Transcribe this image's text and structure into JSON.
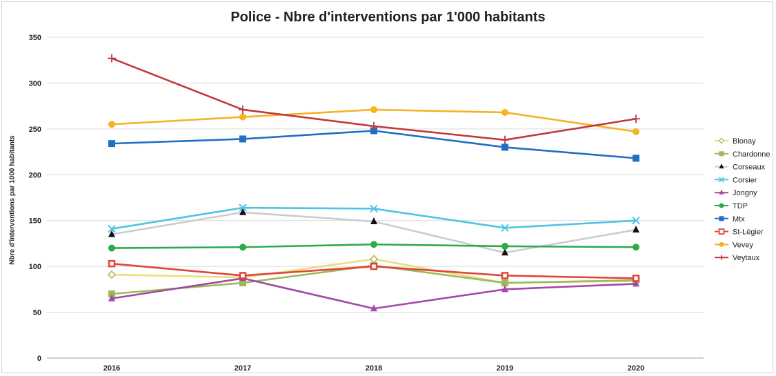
{
  "chart_data": {
    "type": "line",
    "title": "Police - Nbre d'interventions par 1'000 habitants",
    "xlabel": "",
    "ylabel": "Nbre d'interventions par 1000 habitants",
    "x": [
      "2016",
      "2017",
      "2018",
      "2019",
      "2020"
    ],
    "ylim": [
      0,
      350
    ],
    "yticks": [
      0,
      50,
      100,
      150,
      200,
      250,
      300,
      350
    ],
    "grid": true,
    "legend": "right",
    "series": [
      {
        "name": "Blonay",
        "color": "#e8e07a",
        "marker": "diamond-open",
        "values": [
          91,
          88,
          108,
          82,
          84
        ]
      },
      {
        "name": "Chardonne",
        "color": "#9bbb59",
        "marker": "square",
        "values": [
          70,
          82,
          101,
          82,
          85
        ]
      },
      {
        "name": "Corseaux",
        "color": "#cccccc",
        "marker": "triangle",
        "values": [
          135,
          159,
          149,
          115,
          140
        ]
      },
      {
        "name": "Corsier",
        "color": "#4bc4e6",
        "marker": "x",
        "values": [
          141,
          164,
          163,
          142,
          150
        ]
      },
      {
        "name": "Jongny",
        "color": "#a347a8",
        "marker": "triangle",
        "values": [
          65,
          87,
          54,
          75,
          81
        ]
      },
      {
        "name": "TDP",
        "color": "#2bab4a",
        "marker": "circle",
        "values": [
          120,
          121,
          124,
          122,
          121
        ]
      },
      {
        "name": "Mtx",
        "color": "#1f6fc6",
        "marker": "square",
        "values": [
          234,
          239,
          248,
          230,
          218
        ]
      },
      {
        "name": "St-Légier",
        "color": "#e0443c",
        "marker": "square-open",
        "values": [
          103,
          90,
          100,
          90,
          87
        ]
      },
      {
        "name": "Vevey",
        "color": "#f5b324",
        "marker": "circle",
        "values": [
          255,
          263,
          271,
          268,
          247
        ]
      },
      {
        "name": "Veytaux",
        "color": "#c0393b",
        "marker": "plus",
        "values": [
          327,
          271,
          253,
          238,
          261
        ]
      }
    ]
  }
}
